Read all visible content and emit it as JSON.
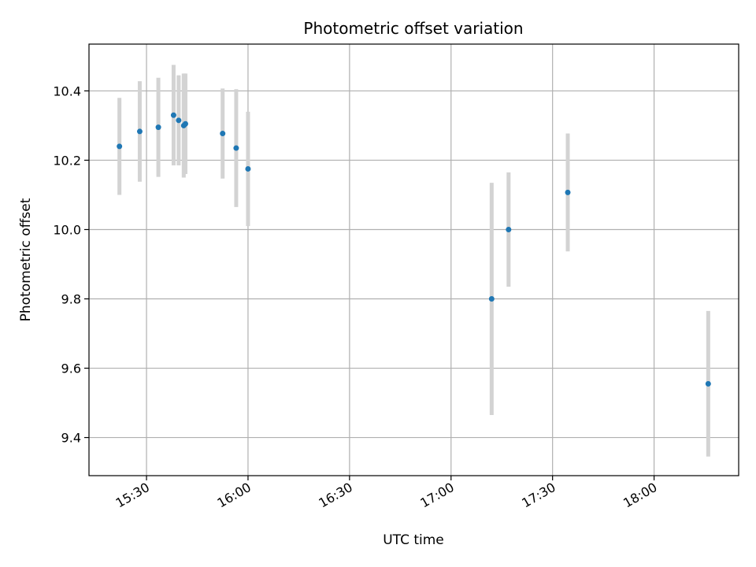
{
  "chart_data": {
    "type": "scatter",
    "title": "Photometric offset variation",
    "xlabel": "UTC time",
    "ylabel": "Photometric offset",
    "x_axis_type": "time",
    "xlim": [
      "15:13",
      "18:25"
    ],
    "ylim": [
      9.29,
      10.535
    ],
    "xticks": [
      "15:30",
      "16:00",
      "16:30",
      "17:00",
      "17:30",
      "18:00"
    ],
    "yticks": [
      9.4,
      9.6,
      9.8,
      10.0,
      10.2,
      10.4
    ],
    "grid": true,
    "colors": {
      "point": "#1f77b4",
      "errorbar": "#d3d3d3",
      "grid": "#b0b0b0"
    },
    "series": [
      {
        "points": [
          {
            "t": "15:22",
            "y": 10.24,
            "err": 0.14
          },
          {
            "t": "15:28",
            "y": 10.283,
            "err": 0.145
          },
          {
            "t": "15:33.5",
            "y": 10.295,
            "err": 0.143
          },
          {
            "t": "15:38",
            "y": 10.33,
            "err": 0.145
          },
          {
            "t": "15:39.5",
            "y": 10.315,
            "err": 0.13
          },
          {
            "t": "15:41",
            "y": 10.3,
            "err": 0.15
          },
          {
            "t": "15:41.5",
            "y": 10.305,
            "err": 0.145
          },
          {
            "t": "15:52.5",
            "y": 10.277,
            "err": 0.13
          },
          {
            "t": "15:56.5",
            "y": 10.235,
            "err": 0.17
          },
          {
            "t": "16:00",
            "y": 10.175,
            "err": 0.165
          },
          {
            "t": "17:12",
            "y": 9.8,
            "err": 0.335
          },
          {
            "t": "17:17",
            "y": 10.0,
            "err": 0.165
          },
          {
            "t": "17:34.5",
            "y": 10.107,
            "err": 0.17
          },
          {
            "t": "18:16",
            "y": 9.555,
            "err": 0.21
          }
        ]
      }
    ]
  }
}
